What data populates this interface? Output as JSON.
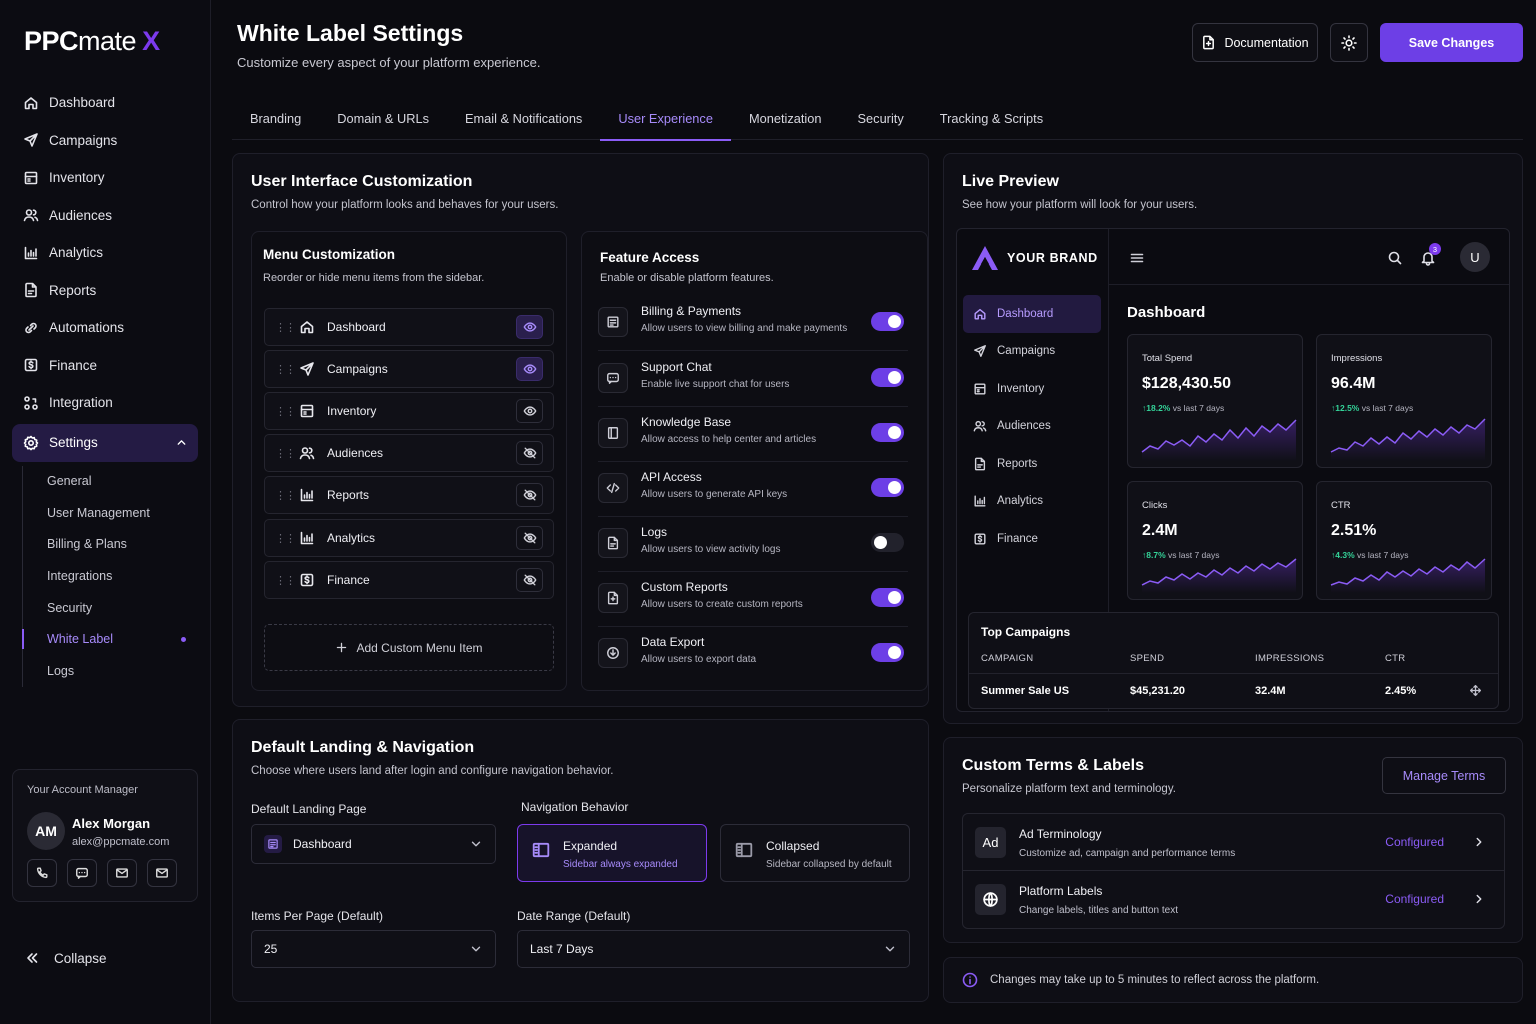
{
  "brand": {
    "name_a": "PPC",
    "name_b": "mate",
    "name_x": "X"
  },
  "sidebar": {
    "items": [
      {
        "label": "Dashboard",
        "icon": "home-icon"
      },
      {
        "label": "Campaigns",
        "icon": "send-icon"
      },
      {
        "label": "Inventory",
        "icon": "inventory-icon"
      },
      {
        "label": "Audiences",
        "icon": "users-icon"
      },
      {
        "label": "Analytics",
        "icon": "analytics-icon"
      },
      {
        "label": "Reports",
        "icon": "report-icon"
      },
      {
        "label": "Automations",
        "icon": "automation-icon"
      },
      {
        "label": "Finance",
        "icon": "finance-icon"
      },
      {
        "label": "Integration",
        "icon": "integration-icon"
      },
      {
        "label": "Settings",
        "icon": "gear-icon"
      }
    ],
    "settings_sub": [
      "General",
      "User Management",
      "Billing & Plans",
      "Integrations",
      "Security",
      "White Label",
      "Logs"
    ],
    "account": {
      "title": "Your Account Manager",
      "initials": "AM",
      "name": "Alex Morgan",
      "email": "alex@ppcmate.com"
    },
    "collapse_label": "Collapse"
  },
  "header": {
    "title": "White Label Settings",
    "subtitle": "Customize every aspect of your platform experience.",
    "doc_label": "Documentation",
    "save_label": "Save Changes"
  },
  "tabs": [
    "Branding",
    "Domain & URLs",
    "Email & Notifications",
    "User Experience",
    "Monetization",
    "Security",
    "Tracking & Scripts"
  ],
  "active_tab": "User Experience",
  "ui": {
    "title": "User Interface Customization",
    "subtitle": "Control how your platform looks and behaves for your users.",
    "menu": {
      "title": "Menu Customization",
      "subtitle": "Reorder or hide menu items from the sidebar.",
      "items": [
        "Dashboard",
        "Campaigns",
        "Inventory",
        "Audiences",
        "Reports",
        "Analytics",
        "Finance"
      ],
      "add_label": "Add Custom Menu Item"
    },
    "features": {
      "title": "Feature Access",
      "subtitle": "Enable or disable platform features.",
      "items": [
        {
          "title": "Billing & Payments",
          "desc": "Allow users to view billing and make payments",
          "enabled": true
        },
        {
          "title": "Support Chat",
          "desc": "Enable live support chat for users",
          "enabled": true
        },
        {
          "title": "Knowledge Base",
          "desc": "Allow access to help center and articles",
          "enabled": true
        },
        {
          "title": "API Access",
          "desc": "Allow users to generate API keys",
          "enabled": true
        },
        {
          "title": "Logs",
          "desc": "Allow users to view activity logs",
          "enabled": false
        },
        {
          "title": "Custom Reports",
          "desc": "Allow users to create custom reports",
          "enabled": true
        },
        {
          "title": "Data Export",
          "desc": "Allow users to export data",
          "enabled": true
        }
      ]
    }
  },
  "landing": {
    "title": "Default Landing & Navigation",
    "subtitle": "Choose where users land after login and configure navigation behavior.",
    "landing_label": "Default Landing Page",
    "landing_value": "Dashboard",
    "nav_label": "Navigation Behavior",
    "expanded_title": "Expanded",
    "expanded_desc": "Sidebar always expanded",
    "collapsed_title": "Collapsed",
    "collapsed_desc": "Sidebar collapsed by default",
    "per_page_label": "Items Per Page (Default)",
    "per_page_value": "25",
    "date_label": "Date Range (Default)",
    "date_value": "Last 7 Days"
  },
  "preview": {
    "title": "Live Preview",
    "subtitle": "See how your platform will look for your users.",
    "brand": "YOUR BRAND",
    "notif_count": "3",
    "user_initial": "U",
    "nav": [
      "Dashboard",
      "Campaigns",
      "Inventory",
      "Audiences",
      "Reports",
      "Analytics",
      "Finance"
    ],
    "page_title": "Dashboard",
    "kpis": [
      {
        "label": "Total Spend",
        "value": "$128,430.50",
        "change": "↑18.2%",
        "period": "vs last 7 days"
      },
      {
        "label": "Impressions",
        "value": "96.4M",
        "change": "↑12.5%",
        "period": "vs last 7 days"
      },
      {
        "label": "Clicks",
        "value": "2.4M",
        "change": "↑8.7%",
        "period": "vs last 7 days"
      },
      {
        "label": "CTR",
        "value": "2.51%",
        "change": "↑4.3%",
        "period": "vs last 7 days"
      }
    ],
    "table": {
      "title": "Top Campaigns",
      "headers": [
        "CAMPAIGN",
        "SPEND",
        "IMPRESSIONS",
        "CTR"
      ],
      "row": [
        "Summer Sale US",
        "$45,231.20",
        "32.4M",
        "2.45%"
      ]
    }
  },
  "terms": {
    "title": "Custom Terms & Labels",
    "subtitle": "Personalize platform text and terminology.",
    "manage_label": "Manage Terms",
    "items": [
      {
        "icon_text": "Ad",
        "title": "Ad Terminology",
        "desc": "Customize ad, campaign and performance terms",
        "status": "Configured"
      },
      {
        "title": "Platform Labels",
        "desc": "Change labels, titles and button text",
        "status": "Configured"
      }
    ]
  },
  "note": "Changes may take up to 5 minutes to reflect across the platform.",
  "colors": {
    "accent": "#6d3fe6",
    "accent_light": "#a78bfa",
    "positive": "#34d399",
    "background": "#0b0b10"
  }
}
